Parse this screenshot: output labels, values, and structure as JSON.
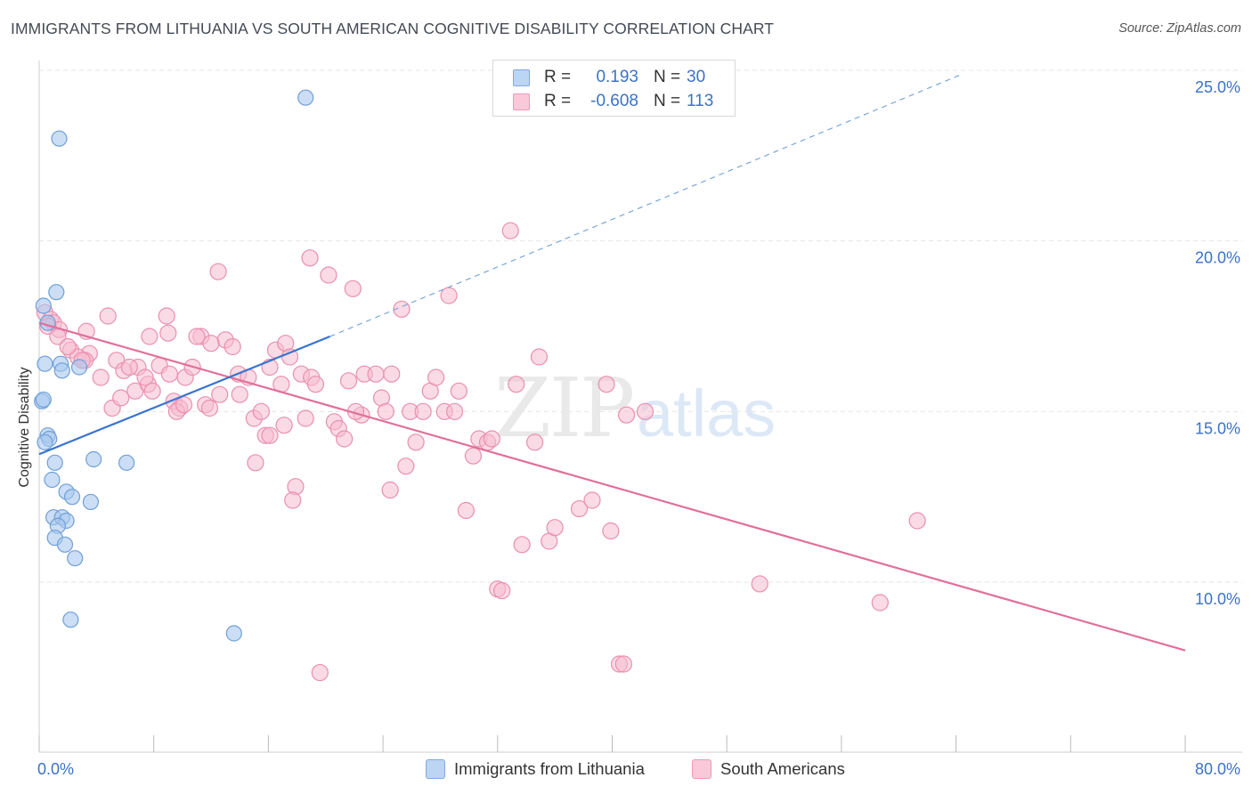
{
  "title": "IMMIGRANTS FROM LITHUANIA VS SOUTH AMERICAN COGNITIVE DISABILITY CORRELATION CHART",
  "source": "Source: ZipAtlas.com",
  "watermark": {
    "zip": "ZIP",
    "atlas": "atlas"
  },
  "legend": {
    "rows": [
      {
        "r_label": "R =",
        "r_value": "0.193",
        "n_label": "N =",
        "n_value": "30"
      },
      {
        "r_label": "R =",
        "r_value": "-0.608",
        "n_label": "N =",
        "n_value": "113"
      }
    ]
  },
  "bottom_legend": [
    "Immigrants from Lithuania",
    "South Americans"
  ],
  "colors": {
    "blue_fill": "#a9c8ef",
    "blue_stroke": "#6f9fd8",
    "blue_line": "#3a74cf",
    "pink_fill": "#f6bcd0",
    "pink_stroke": "#e98fae",
    "pink_line": "#e0709a",
    "axis_text": "#3b72c8",
    "grid": "#e6e6e6"
  },
  "chart_data": {
    "type": "scatter",
    "title": "IMMIGRANTS FROM LITHUANIA VS SOUTH AMERICAN COGNITIVE DISABILITY CORRELATION CHART",
    "xlabel": "",
    "ylabel": "Cognitive Disability",
    "xlim": [
      0,
      80
    ],
    "ylim": [
      5,
      26
    ],
    "x_tick_labels": [
      "0.0%",
      "80.0%"
    ],
    "y_ticks": [
      10,
      15,
      20,
      25
    ],
    "y_tick_labels": [
      "10.0%",
      "15.0%",
      "20.0%",
      "25.0%"
    ],
    "grid": true,
    "legend_position": "top-center",
    "series": [
      {
        "name": "Immigrants from Lithuania",
        "r": 0.193,
        "n": 30,
        "trend": {
          "x0": 0,
          "y0": 13.75,
          "x1": 20.3,
          "y1": 17.2,
          "dash_to_x": 64.5,
          "dash_to_y": 24.9
        },
        "points": [
          [
            0.3,
            18.1
          ],
          [
            1.2,
            18.5
          ],
          [
            0.6,
            17.6
          ],
          [
            0.4,
            16.4
          ],
          [
            1.5,
            16.4
          ],
          [
            1.6,
            16.2
          ],
          [
            2.8,
            16.3
          ],
          [
            0.2,
            15.3
          ],
          [
            0.3,
            15.35
          ],
          [
            0.6,
            14.3
          ],
          [
            0.7,
            14.2
          ],
          [
            0.4,
            14.1
          ],
          [
            1.1,
            13.5
          ],
          [
            3.8,
            13.6
          ],
          [
            6.1,
            13.5
          ],
          [
            0.9,
            13.0
          ],
          [
            1.9,
            12.65
          ],
          [
            2.3,
            12.5
          ],
          [
            3.6,
            12.35
          ],
          [
            1.0,
            11.9
          ],
          [
            1.6,
            11.9
          ],
          [
            1.9,
            11.8
          ],
          [
            1.3,
            11.65
          ],
          [
            1.1,
            11.3
          ],
          [
            1.8,
            11.1
          ],
          [
            2.5,
            10.7
          ],
          [
            2.2,
            8.9
          ],
          [
            13.6,
            8.5
          ],
          [
            1.4,
            23.0
          ],
          [
            18.6,
            24.2
          ]
        ]
      },
      {
        "name": "South Americans",
        "r": -0.608,
        "n": 113,
        "trend": {
          "x0": 0,
          "y0": 17.6,
          "x1": 80,
          "y1": 8.0
        },
        "points": [
          [
            0.4,
            17.9
          ],
          [
            0.8,
            17.7
          ],
          [
            1.0,
            17.6
          ],
          [
            1.4,
            17.4
          ],
          [
            0.6,
            17.5
          ],
          [
            1.3,
            17.2
          ],
          [
            3.3,
            17.35
          ],
          [
            4.8,
            17.8
          ],
          [
            2.2,
            16.8
          ],
          [
            3.5,
            16.7
          ],
          [
            2.7,
            16.6
          ],
          [
            3.2,
            16.5
          ],
          [
            5.4,
            16.5
          ],
          [
            6.9,
            16.3
          ],
          [
            8.4,
            16.35
          ],
          [
            6.7,
            15.6
          ],
          [
            5.1,
            15.1
          ],
          [
            5.7,
            15.4
          ],
          [
            7.6,
            15.8
          ],
          [
            7.4,
            16.0
          ],
          [
            7.9,
            15.6
          ],
          [
            9.0,
            17.3
          ],
          [
            7.7,
            17.2
          ],
          [
            8.9,
            17.8
          ],
          [
            9.4,
            15.3
          ],
          [
            9.8,
            15.1
          ],
          [
            9.6,
            15.0
          ],
          [
            10.2,
            16.0
          ],
          [
            10.7,
            16.3
          ],
          [
            11.3,
            17.2
          ],
          [
            11.6,
            15.2
          ],
          [
            11.9,
            15.1
          ],
          [
            12.6,
            15.5
          ],
          [
            13.0,
            17.1
          ],
          [
            13.5,
            16.9
          ],
          [
            12.5,
            19.1
          ],
          [
            13.9,
            16.1
          ],
          [
            14.0,
            15.5
          ],
          [
            14.6,
            16.0
          ],
          [
            15.0,
            14.8
          ],
          [
            15.5,
            15.0
          ],
          [
            15.8,
            14.3
          ],
          [
            16.1,
            16.3
          ],
          [
            16.5,
            16.8
          ],
          [
            16.9,
            15.8
          ],
          [
            17.2,
            17.0
          ],
          [
            17.5,
            16.6
          ],
          [
            17.1,
            14.6
          ],
          [
            18.3,
            16.1
          ],
          [
            18.6,
            14.8
          ],
          [
            19.0,
            16.0
          ],
          [
            19.3,
            15.8
          ],
          [
            18.9,
            19.5
          ],
          [
            20.2,
            19.0
          ],
          [
            20.6,
            14.7
          ],
          [
            20.9,
            14.5
          ],
          [
            21.3,
            14.2
          ],
          [
            21.6,
            15.9
          ],
          [
            21.9,
            18.6
          ],
          [
            22.5,
            14.9
          ],
          [
            22.7,
            16.1
          ],
          [
            23.5,
            16.1
          ],
          [
            23.9,
            15.4
          ],
          [
            24.2,
            15.0
          ],
          [
            24.6,
            16.1
          ],
          [
            25.3,
            18.0
          ],
          [
            25.6,
            13.4
          ],
          [
            25.9,
            15.0
          ],
          [
            26.3,
            14.1
          ],
          [
            26.8,
            15.0
          ],
          [
            27.3,
            15.6
          ],
          [
            27.7,
            16.0
          ],
          [
            28.3,
            15.0
          ],
          [
            28.6,
            18.4
          ],
          [
            29.0,
            15.0
          ],
          [
            29.3,
            15.6
          ],
          [
            29.8,
            12.1
          ],
          [
            30.3,
            13.7
          ],
          [
            30.7,
            14.2
          ],
          [
            31.3,
            14.1
          ],
          [
            31.6,
            14.2
          ],
          [
            32.0,
            9.8
          ],
          [
            32.3,
            9.75
          ],
          [
            32.9,
            20.3
          ],
          [
            33.3,
            15.8
          ],
          [
            33.7,
            11.1
          ],
          [
            34.6,
            14.1
          ],
          [
            34.9,
            16.6
          ],
          [
            35.6,
            11.2
          ],
          [
            36.0,
            11.6
          ],
          [
            37.7,
            12.15
          ],
          [
            38.6,
            12.4
          ],
          [
            39.6,
            15.8
          ],
          [
            39.9,
            11.5
          ],
          [
            41.0,
            14.9
          ],
          [
            42.3,
            15.0
          ],
          [
            40.5,
            7.6
          ],
          [
            40.8,
            7.6
          ],
          [
            50.3,
            9.95
          ],
          [
            58.7,
            9.4
          ],
          [
            61.3,
            11.8
          ],
          [
            11.0,
            17.2
          ],
          [
            12.0,
            17.0
          ],
          [
            5.9,
            16.2
          ],
          [
            4.3,
            16.0
          ],
          [
            3.0,
            16.5
          ],
          [
            17.9,
            12.8
          ],
          [
            15.1,
            13.5
          ],
          [
            19.6,
            7.35
          ],
          [
            17.7,
            12.4
          ],
          [
            16.1,
            14.3
          ],
          [
            24.5,
            12.7
          ],
          [
            9.1,
            16.1
          ],
          [
            10.1,
            15.2
          ],
          [
            2.0,
            16.9
          ],
          [
            6.3,
            16.3
          ],
          [
            22.1,
            15.0
          ]
        ]
      }
    ]
  }
}
